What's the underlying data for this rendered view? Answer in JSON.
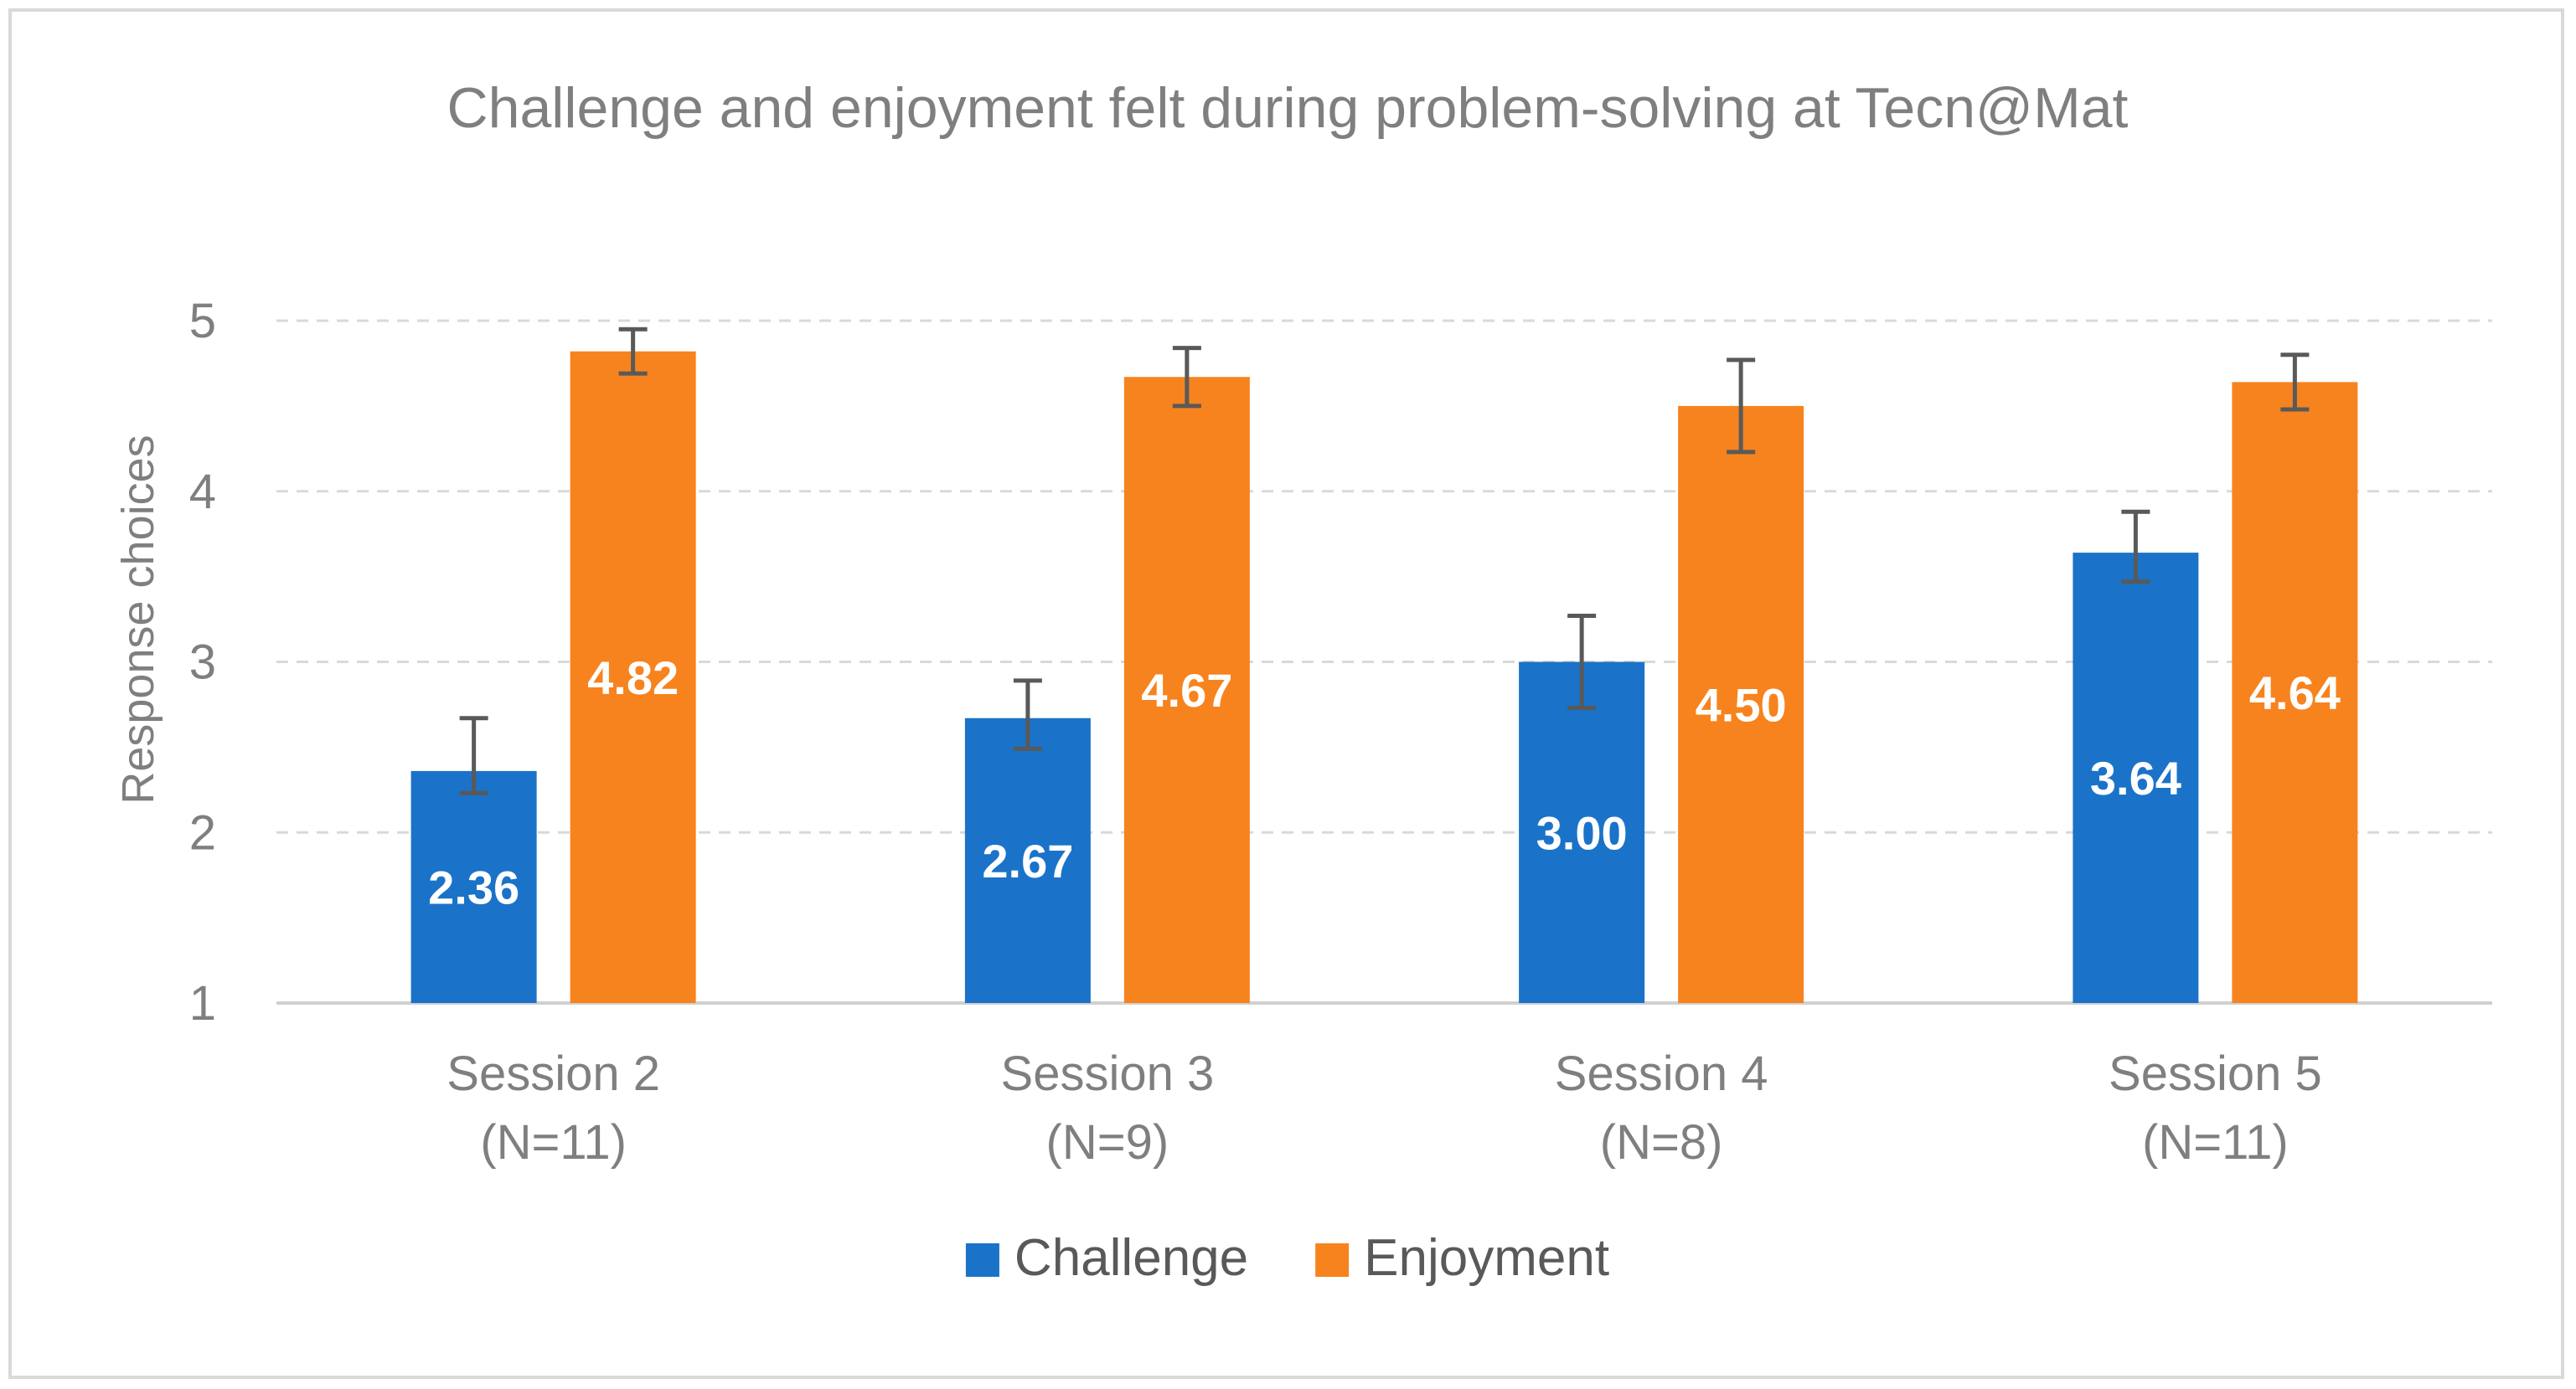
{
  "chart_data": {
    "type": "bar",
    "title": "Challenge and enjoyment felt during problem-solving at Tecn@Mat",
    "ylabel": "Response choices",
    "xlabel": "",
    "categories": [
      [
        "Session 2",
        "(N=11)"
      ],
      [
        "Session 3",
        "(N=9)"
      ],
      [
        "Session 4",
        "(N=8)"
      ],
      [
        "Session 5",
        "(N=11)"
      ]
    ],
    "ylim": [
      1,
      5
    ],
    "yticks": [
      "1",
      "2",
      "3",
      "4",
      "5"
    ],
    "grid": true,
    "legend_position": "bottom",
    "series": [
      {
        "name": "Challenge",
        "color": "#1a73c8",
        "values": [
          2.36,
          2.67,
          3.0,
          3.64
        ],
        "labels": [
          "2.36",
          "2.67",
          "3.00",
          "3.64"
        ],
        "error_low": [
          2.23,
          2.49,
          2.73,
          3.47
        ],
        "error_high": [
          2.67,
          2.89,
          3.27,
          3.88
        ]
      },
      {
        "name": "Enjoyment",
        "color": "#f7831e",
        "values": [
          4.82,
          4.67,
          4.5,
          4.64
        ],
        "labels": [
          "4.82",
          "4.67",
          "4.50",
          "4.64"
        ],
        "error_low": [
          4.69,
          4.5,
          4.23,
          4.48
        ],
        "error_high": [
          4.95,
          4.84,
          4.77,
          4.8
        ]
      }
    ]
  }
}
